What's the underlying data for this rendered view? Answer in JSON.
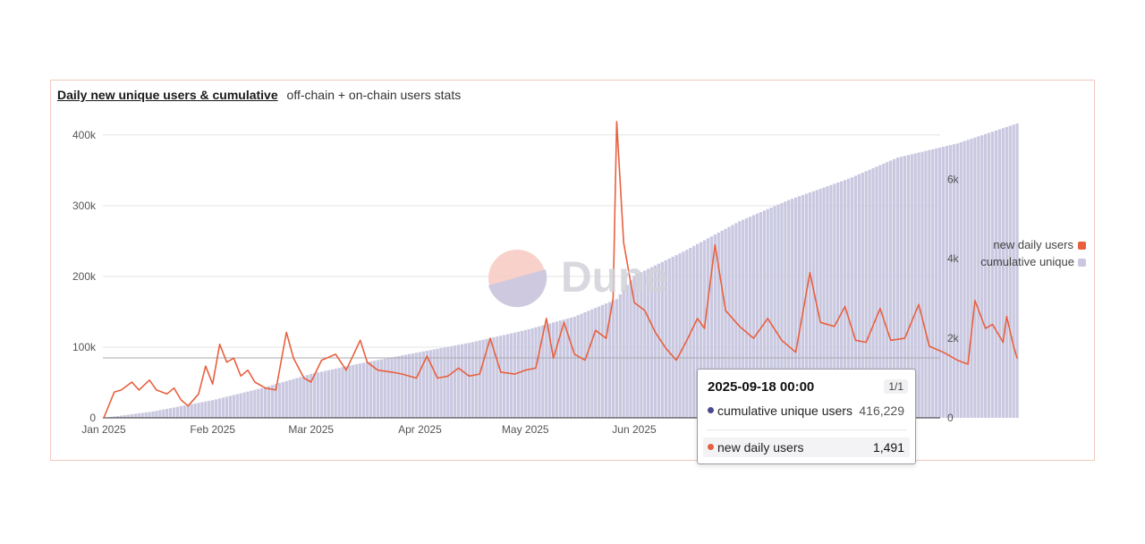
{
  "header": {
    "title": "Daily new unique users & cumulative",
    "subtitle": "off-chain + on-chain users stats"
  },
  "watermark": {
    "text": "Dune"
  },
  "legend": [
    {
      "label": "new daily users",
      "color": "#e8603f"
    },
    {
      "label": "cumulative unique",
      "color": "#c9c8e0"
    }
  ],
  "tooltip": {
    "date": "2025-09-18 00:00",
    "page": "1/1",
    "rows": [
      {
        "label": "cumulative unique users",
        "value": "416,229",
        "dot_color": "#4a4a8c"
      },
      {
        "label": "new daily users",
        "value": "1,491",
        "dot_color": "#e8603f"
      }
    ]
  },
  "chart_data": {
    "type": "bar+line",
    "title": "Daily new unique users & cumulative",
    "x_tick_labels": [
      "Jan 2025",
      "Feb 2025",
      "Mar 2025",
      "Apr 2025",
      "May 2025",
      "Jun 2025"
    ],
    "x_range": [
      "2025-01-01",
      "2025-09-18"
    ],
    "y_left": {
      "ticks": [
        0,
        100000,
        200000,
        300000,
        400000
      ],
      "tick_labels": [
        "0",
        "100k",
        "200k",
        "300k",
        "400k"
      ],
      "range": [
        0,
        420000
      ]
    },
    "y_right": {
      "ticks": [
        0,
        2000,
        4000,
        6000
      ],
      "tick_labels": [
        "0",
        "2k",
        "4k",
        "6k"
      ],
      "range": [
        0,
        7470
      ]
    },
    "grid": true,
    "legend_position": "right",
    "series": [
      {
        "name": "cumulative unique",
        "type": "bar",
        "axis": "left",
        "color": "#c9c8e0",
        "points": [
          [
            "2025-01-01",
            0
          ],
          [
            "2025-01-15",
            9000
          ],
          [
            "2025-02-01",
            25000
          ],
          [
            "2025-02-15",
            42000
          ],
          [
            "2025-03-01",
            62000
          ],
          [
            "2025-03-15",
            77000
          ],
          [
            "2025-04-01",
            93000
          ],
          [
            "2025-04-15",
            106000
          ],
          [
            "2025-05-01",
            124000
          ],
          [
            "2025-05-15",
            143000
          ],
          [
            "2025-05-27",
            168000
          ],
          [
            "2025-06-01",
            201000
          ],
          [
            "2025-06-15",
            235000
          ],
          [
            "2025-07-01",
            278000
          ],
          [
            "2025-07-15",
            308000
          ],
          [
            "2025-08-01",
            338000
          ],
          [
            "2025-08-15",
            368000
          ],
          [
            "2025-09-01",
            388000
          ],
          [
            "2025-09-18",
            416229
          ]
        ]
      },
      {
        "name": "new daily users",
        "type": "line",
        "axis": "right",
        "color": "#e8603f",
        "points": [
          [
            "2025-01-01",
            0
          ],
          [
            "2025-01-04",
            650
          ],
          [
            "2025-01-06",
            700
          ],
          [
            "2025-01-09",
            900
          ],
          [
            "2025-01-11",
            700
          ],
          [
            "2025-01-14",
            950
          ],
          [
            "2025-01-16",
            700
          ],
          [
            "2025-01-19",
            600
          ],
          [
            "2025-01-21",
            750
          ],
          [
            "2025-01-23",
            450
          ],
          [
            "2025-01-25",
            300
          ],
          [
            "2025-01-28",
            600
          ],
          [
            "2025-01-30",
            1300
          ],
          [
            "2025-02-01",
            850
          ],
          [
            "2025-02-03",
            1850
          ],
          [
            "2025-02-05",
            1400
          ],
          [
            "2025-02-07",
            1500
          ],
          [
            "2025-02-09",
            1050
          ],
          [
            "2025-02-11",
            1200
          ],
          [
            "2025-02-13",
            900
          ],
          [
            "2025-02-16",
            750
          ],
          [
            "2025-02-19",
            700
          ],
          [
            "2025-02-22",
            2150
          ],
          [
            "2025-02-24",
            1500
          ],
          [
            "2025-02-27",
            1000
          ],
          [
            "2025-03-01",
            900
          ],
          [
            "2025-03-04",
            1450
          ],
          [
            "2025-03-08",
            1600
          ],
          [
            "2025-03-11",
            1200
          ],
          [
            "2025-03-15",
            1950
          ],
          [
            "2025-03-17",
            1400
          ],
          [
            "2025-03-20",
            1200
          ],
          [
            "2025-03-24",
            1150
          ],
          [
            "2025-03-27",
            1100
          ],
          [
            "2025-03-31",
            1000
          ],
          [
            "2025-04-03",
            1550
          ],
          [
            "2025-04-06",
            1000
          ],
          [
            "2025-04-09",
            1050
          ],
          [
            "2025-04-12",
            1250
          ],
          [
            "2025-04-15",
            1050
          ],
          [
            "2025-04-18",
            1100
          ],
          [
            "2025-04-21",
            2000
          ],
          [
            "2025-04-24",
            1150
          ],
          [
            "2025-04-28",
            1100
          ],
          [
            "2025-05-01",
            1200
          ],
          [
            "2025-05-04",
            1250
          ],
          [
            "2025-05-07",
            2500
          ],
          [
            "2025-05-09",
            1500
          ],
          [
            "2025-05-12",
            2400
          ],
          [
            "2025-05-15",
            1600
          ],
          [
            "2025-05-18",
            1450
          ],
          [
            "2025-05-21",
            2200
          ],
          [
            "2025-05-24",
            2000
          ],
          [
            "2025-05-26",
            3000
          ],
          [
            "2025-05-27",
            7450
          ],
          [
            "2025-05-29",
            4400
          ],
          [
            "2025-06-01",
            2900
          ],
          [
            "2025-06-04",
            2700
          ],
          [
            "2025-06-07",
            2150
          ],
          [
            "2025-06-10",
            1750
          ],
          [
            "2025-06-13",
            1450
          ],
          [
            "2025-06-16",
            1950
          ],
          [
            "2025-06-19",
            2500
          ],
          [
            "2025-06-21",
            2250
          ],
          [
            "2025-06-24",
            4350
          ],
          [
            "2025-06-27",
            2700
          ],
          [
            "2025-07-01",
            2300
          ],
          [
            "2025-07-05",
            2000
          ],
          [
            "2025-07-09",
            2500
          ],
          [
            "2025-07-13",
            1950
          ],
          [
            "2025-07-17",
            1650
          ],
          [
            "2025-07-21",
            3650
          ],
          [
            "2025-07-24",
            2400
          ],
          [
            "2025-07-28",
            2300
          ],
          [
            "2025-07-31",
            2800
          ],
          [
            "2025-08-03",
            1950
          ],
          [
            "2025-08-06",
            1900
          ],
          [
            "2025-08-10",
            2750
          ],
          [
            "2025-08-13",
            1950
          ],
          [
            "2025-08-17",
            2000
          ],
          [
            "2025-08-21",
            2850
          ],
          [
            "2025-08-24",
            1800
          ],
          [
            "2025-08-28",
            1650
          ],
          [
            "2025-09-01",
            1450
          ],
          [
            "2025-09-04",
            1350
          ],
          [
            "2025-09-06",
            2950
          ],
          [
            "2025-09-09",
            2250
          ],
          [
            "2025-09-11",
            2350
          ],
          [
            "2025-09-14",
            1900
          ],
          [
            "2025-09-15",
            2550
          ],
          [
            "2025-09-17",
            1800
          ],
          [
            "2025-09-18",
            1491
          ]
        ]
      }
    ]
  }
}
